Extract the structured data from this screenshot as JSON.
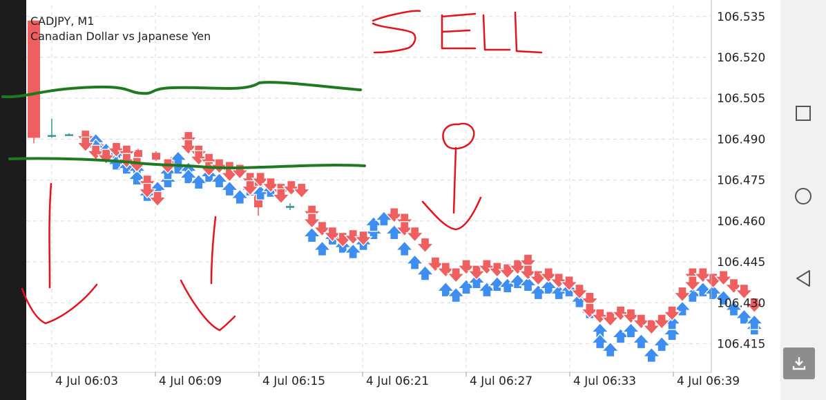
{
  "chart_data": {
    "type": "candlestick",
    "symbol_title": "CADJPY, M1",
    "subtitle": "Canadian Dollar vs Japanese Yen",
    "y_ticks": [
      "106.535",
      "106.520",
      "106.505",
      "106.490",
      "106.475",
      "106.460",
      "106.445",
      "106.430",
      "106.415"
    ],
    "x_ticks": [
      "4 Jul 06:03",
      "4 Jul 06:09",
      "4 Jul 06:15",
      "4 Jul 06:21",
      "4 Jul 06:27",
      "4 Jul 06:33",
      "4 Jul 06:39"
    ],
    "ylim": [
      106.4055,
      106.539
    ],
    "candles": [
      {
        "open": 106.5335,
        "high": 106.5335,
        "low": 106.4885,
        "close": 106.4905
      },
      {
        "open": 106.4915,
        "high": 106.4975,
        "low": 106.4905,
        "close": 106.4915
      },
      {
        "open": 106.4918,
        "high": 106.4922,
        "low": 106.4912,
        "close": 106.4916
      },
      {
        "open": 106.4915,
        "high": 106.4925,
        "low": 106.4905,
        "close": 106.4912
      },
      {
        "open": 106.488,
        "high": 106.4885,
        "low": 106.486,
        "close": 106.4865
      },
      {
        "open": 106.487,
        "high": 106.4875,
        "low": 106.484,
        "close": 106.4845
      },
      {
        "open": 106.486,
        "high": 106.4865,
        "low": 106.483,
        "close": 106.4835
      },
      {
        "open": 106.485,
        "high": 106.4855,
        "low": 106.482,
        "close": 106.4825
      },
      {
        "open": 106.483,
        "high": 106.4835,
        "low": 106.478,
        "close": 106.479
      },
      {
        "open": 106.476,
        "high": 106.477,
        "low": 106.462,
        "close": 106.465
      },
      {
        "open": 106.4655,
        "high": 106.4665,
        "low": 106.464,
        "close": 106.4648
      }
    ],
    "arrows_up": [
      {
        "t": 3,
        "p": 106.4895
      },
      {
        "t": 3,
        "p": 106.4875
      },
      {
        "t": 4,
        "p": 106.486
      },
      {
        "t": 5,
        "p": 106.4845
      },
      {
        "t": 5,
        "p": 106.4815
      },
      {
        "t": 6,
        "p": 106.48
      },
      {
        "t": 7,
        "p": 106.479
      },
      {
        "t": 7,
        "p": 106.476
      },
      {
        "t": 8,
        "p": 106.47
      },
      {
        "t": 9,
        "p": 106.472
      },
      {
        "t": 10,
        "p": 106.475
      },
      {
        "t": 10,
        "p": 106.478
      },
      {
        "t": 11,
        "p": 106.48
      },
      {
        "t": 11,
        "p": 106.483
      },
      {
        "t": 12,
        "p": 106.479
      },
      {
        "t": 12,
        "p": 106.4765
      },
      {
        "t": 13,
        "p": 106.4745
      },
      {
        "t": 14,
        "p": 106.477
      },
      {
        "t": 15,
        "p": 106.475
      },
      {
        "t": 16,
        "p": 106.472
      },
      {
        "t": 17,
        "p": 106.469
      },
      {
        "t": 18,
        "p": 106.472
      },
      {
        "t": 19,
        "p": 106.4705
      },
      {
        "t": 20,
        "p": 106.4715
      },
      {
        "t": 24,
        "p": 106.455
      },
      {
        "t": 25,
        "p": 106.45
      },
      {
        "t": 26,
        "p": 106.454
      },
      {
        "t": 27,
        "p": 106.451
      },
      {
        "t": 28,
        "p": 106.449
      },
      {
        "t": 29,
        "p": 106.452
      },
      {
        "t": 30,
        "p": 106.456
      },
      {
        "t": 30,
        "p": 106.459
      },
      {
        "t": 31,
        "p": 106.461
      },
      {
        "t": 32,
        "p": 106.456
      },
      {
        "t": 33,
        "p": 106.45
      },
      {
        "t": 34,
        "p": 106.445
      },
      {
        "t": 35,
        "p": 106.441
      },
      {
        "t": 37,
        "p": 106.435
      },
      {
        "t": 38,
        "p": 106.433
      },
      {
        "t": 39,
        "p": 106.436
      },
      {
        "t": 40,
        "p": 106.438
      },
      {
        "t": 41,
        "p": 106.435
      },
      {
        "t": 42,
        "p": 106.437
      },
      {
        "t": 43,
        "p": 106.4365
      },
      {
        "t": 44,
        "p": 106.438
      },
      {
        "t": 45,
        "p": 106.437
      },
      {
        "t": 46,
        "p": 106.434
      },
      {
        "t": 47,
        "p": 106.436
      },
      {
        "t": 48,
        "p": 106.434
      },
      {
        "t": 49,
        "p": 106.435
      },
      {
        "t": 50,
        "p": 106.431
      },
      {
        "t": 51,
        "p": 106.427
      },
      {
        "t": 52,
        "p": 106.42
      },
      {
        "t": 52,
        "p": 106.416
      },
      {
        "t": 53,
        "p": 106.413
      },
      {
        "t": 54,
        "p": 106.418
      },
      {
        "t": 55,
        "p": 106.42
      },
      {
        "t": 56,
        "p": 106.416
      },
      {
        "t": 57,
        "p": 106.411
      },
      {
        "t": 58,
        "p": 106.415
      },
      {
        "t": 59,
        "p": 106.419
      },
      {
        "t": 59,
        "p": 106.423
      },
      {
        "t": 60,
        "p": 106.428
      },
      {
        "t": 61,
        "p": 106.433
      },
      {
        "t": 62,
        "p": 106.435
      },
      {
        "t": 63,
        "p": 106.434
      },
      {
        "t": 64,
        "p": 106.432
      },
      {
        "t": 65,
        "p": 106.428
      },
      {
        "t": 66,
        "p": 106.425
      },
      {
        "t": 67,
        "p": 106.421
      },
      {
        "t": 67,
        "p": 106.423
      }
    ],
    "arrows_down": [
      {
        "t": 2,
        "p": 106.4915
      },
      {
        "t": 2,
        "p": 106.489
      },
      {
        "t": 3,
        "p": 106.486
      },
      {
        "t": 4,
        "p": 106.4845
      },
      {
        "t": 5,
        "p": 106.487
      },
      {
        "t": 6,
        "p": 106.486
      },
      {
        "t": 6,
        "p": 106.483
      },
      {
        "t": 7,
        "p": 106.4815
      },
      {
        "t": 8,
        "p": 106.475
      },
      {
        "t": 8,
        "p": 106.472
      },
      {
        "t": 9,
        "p": 106.469
      },
      {
        "t": 10,
        "p": 106.481
      },
      {
        "t": 12,
        "p": 106.491
      },
      {
        "t": 12,
        "p": 106.488
      },
      {
        "t": 13,
        "p": 106.486
      },
      {
        "t": 13,
        "p": 106.484
      },
      {
        "t": 14,
        "p": 106.483
      },
      {
        "t": 14,
        "p": 106.48
      },
      {
        "t": 15,
        "p": 106.481
      },
      {
        "t": 16,
        "p": 106.48
      },
      {
        "t": 16,
        "p": 106.478
      },
      {
        "t": 17,
        "p": 106.479
      },
      {
        "t": 18,
        "p": 106.476
      },
      {
        "t": 18,
        "p": 106.473
      },
      {
        "t": 19,
        "p": 106.476
      },
      {
        "t": 20,
        "p": 106.474
      },
      {
        "t": 21,
        "p": 106.472
      },
      {
        "t": 21,
        "p": 106.47
      },
      {
        "t": 22,
        "p": 106.473
      },
      {
        "t": 23,
        "p": 106.472
      },
      {
        "t": 24,
        "p": 106.464
      },
      {
        "t": 24,
        "p": 106.461
      },
      {
        "t": 25,
        "p": 106.458
      },
      {
        "t": 26,
        "p": 106.456
      },
      {
        "t": 27,
        "p": 106.454
      },
      {
        "t": 28,
        "p": 106.455
      },
      {
        "t": 29,
        "p": 106.4545
      },
      {
        "t": 32,
        "p": 106.463
      },
      {
        "t": 33,
        "p": 106.461
      },
      {
        "t": 33,
        "p": 106.458
      },
      {
        "t": 34,
        "p": 106.456
      },
      {
        "t": 35,
        "p": 106.452
      },
      {
        "t": 36,
        "p": 106.445
      },
      {
        "t": 37,
        "p": 106.443
      },
      {
        "t": 38,
        "p": 106.441
      },
      {
        "t": 39,
        "p": 106.444
      },
      {
        "t": 40,
        "p": 106.442
      },
      {
        "t": 41,
        "p": 106.444
      },
      {
        "t": 42,
        "p": 106.443
      },
      {
        "t": 43,
        "p": 106.4425
      },
      {
        "t": 44,
        "p": 106.444
      },
      {
        "t": 45,
        "p": 106.446
      },
      {
        "t": 45,
        "p": 106.442
      },
      {
        "t": 46,
        "p": 106.44
      },
      {
        "t": 47,
        "p": 106.441
      },
      {
        "t": 48,
        "p": 106.439
      },
      {
        "t": 49,
        "p": 106.438
      },
      {
        "t": 50,
        "p": 106.435
      },
      {
        "t": 51,
        "p": 106.432
      },
      {
        "t": 51,
        "p": 106.428
      },
      {
        "t": 52,
        "p": 106.426
      },
      {
        "t": 53,
        "p": 106.425
      },
      {
        "t": 54,
        "p": 106.427
      },
      {
        "t": 55,
        "p": 106.426
      },
      {
        "t": 56,
        "p": 106.424
      },
      {
        "t": 57,
        "p": 106.422
      },
      {
        "t": 58,
        "p": 106.424
      },
      {
        "t": 59,
        "p": 106.427
      },
      {
        "t": 60,
        "p": 106.434
      },
      {
        "t": 61,
        "p": 106.441
      },
      {
        "t": 61,
        "p": 106.438
      },
      {
        "t": 62,
        "p": 106.441
      },
      {
        "t": 63,
        "p": 106.439
      },
      {
        "t": 64,
        "p": 106.44
      },
      {
        "t": 65,
        "p": 106.437
      },
      {
        "t": 66,
        "p": 106.435
      },
      {
        "t": 67,
        "p": 106.43
      }
    ],
    "annotations": [
      "SELL"
    ]
  },
  "colors": {
    "bear": "#ef5f5f",
    "bull": "#3d8ef0",
    "doji": "#2e9c94",
    "grid": "#d9d9d9",
    "marker_green": "#1f7a1f",
    "marker_red": "#e8101a"
  },
  "icons": {
    "nav_square": "square-icon",
    "nav_circle": "circle-icon",
    "nav_back": "back-triangle-icon",
    "download": "download-icon"
  }
}
